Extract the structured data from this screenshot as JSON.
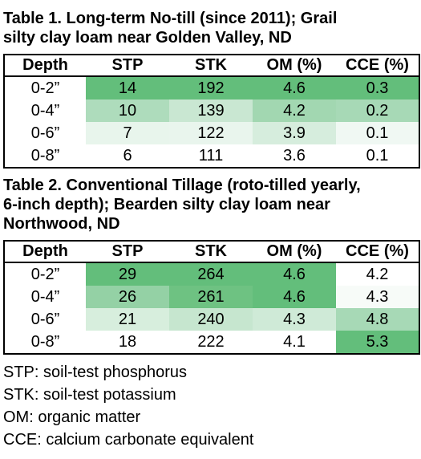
{
  "table1": {
    "caption_line1": "Table 1. Long-term No-till (since 2011); Grail",
    "caption_line2": "silty clay loam near Golden Valley, ND",
    "headers": [
      "Depth",
      "STP",
      "STK",
      "OM (%)",
      "CCE (%)"
    ],
    "rows": [
      [
        "0-2”",
        "14",
        "192",
        "4.6",
        "0.3"
      ],
      [
        "0-4”",
        "10",
        "139",
        "4.2",
        "0.2"
      ],
      [
        "0-6”",
        "7",
        "122",
        "3.9",
        "0.1"
      ],
      [
        "0-8”",
        "6",
        "111",
        "3.6",
        "0.1"
      ]
    ],
    "cell_colors": [
      [
        "#ffffff",
        "#63be7b",
        "#63be7b",
        "#63be7b",
        "#63be7b"
      ],
      [
        "#ffffff",
        "#aedcbc",
        "#c9e7d2",
        "#a2d7b1",
        "#a7d9b6"
      ],
      [
        "#ffffff",
        "#e8f5ec",
        "#e9f5ed",
        "#d6eddd",
        "#f0f8f3"
      ],
      [
        "#ffffff",
        "#ffffff",
        "#ffffff",
        "#ffffff",
        "#ffffff"
      ]
    ]
  },
  "table2": {
    "caption_line1": "Table 2. Conventional Tillage (roto-tilled yearly,",
    "caption_line2": "6-inch depth); Bearden silty clay loam near",
    "caption_line3": "Northwood, ND",
    "headers": [
      "Depth",
      "STP",
      "STK",
      "OM (%)",
      "CCE (%)"
    ],
    "rows": [
      [
        "0-2”",
        "29",
        "264",
        "4.6",
        "4.2"
      ],
      [
        "0-4”",
        "26",
        "261",
        "4.6",
        "4.3"
      ],
      [
        "0-6”",
        "21",
        "240",
        "4.3",
        "4.8"
      ],
      [
        "0-8”",
        "18",
        "222",
        "4.1",
        "5.3"
      ]
    ],
    "cell_colors": [
      [
        "#ffffff",
        "#63be7b",
        "#63be7b",
        "#63be7b",
        "#ffffff"
      ],
      [
        "#ffffff",
        "#94d1a5",
        "#6ec282",
        "#63be7b",
        "#f7fbf8"
      ],
      [
        "#ffffff",
        "#d7eedd",
        "#c6e6cf",
        "#cfead7",
        "#a7d9b6"
      ],
      [
        "#ffffff",
        "#ffffff",
        "#ffffff",
        "#ffffff",
        "#63be7b"
      ]
    ]
  },
  "notes": [
    "STP: soil-test phosphorus",
    "STK: soil-test potassium",
    "OM: organic matter",
    "CCE: calcium carbonate equivalent"
  ]
}
